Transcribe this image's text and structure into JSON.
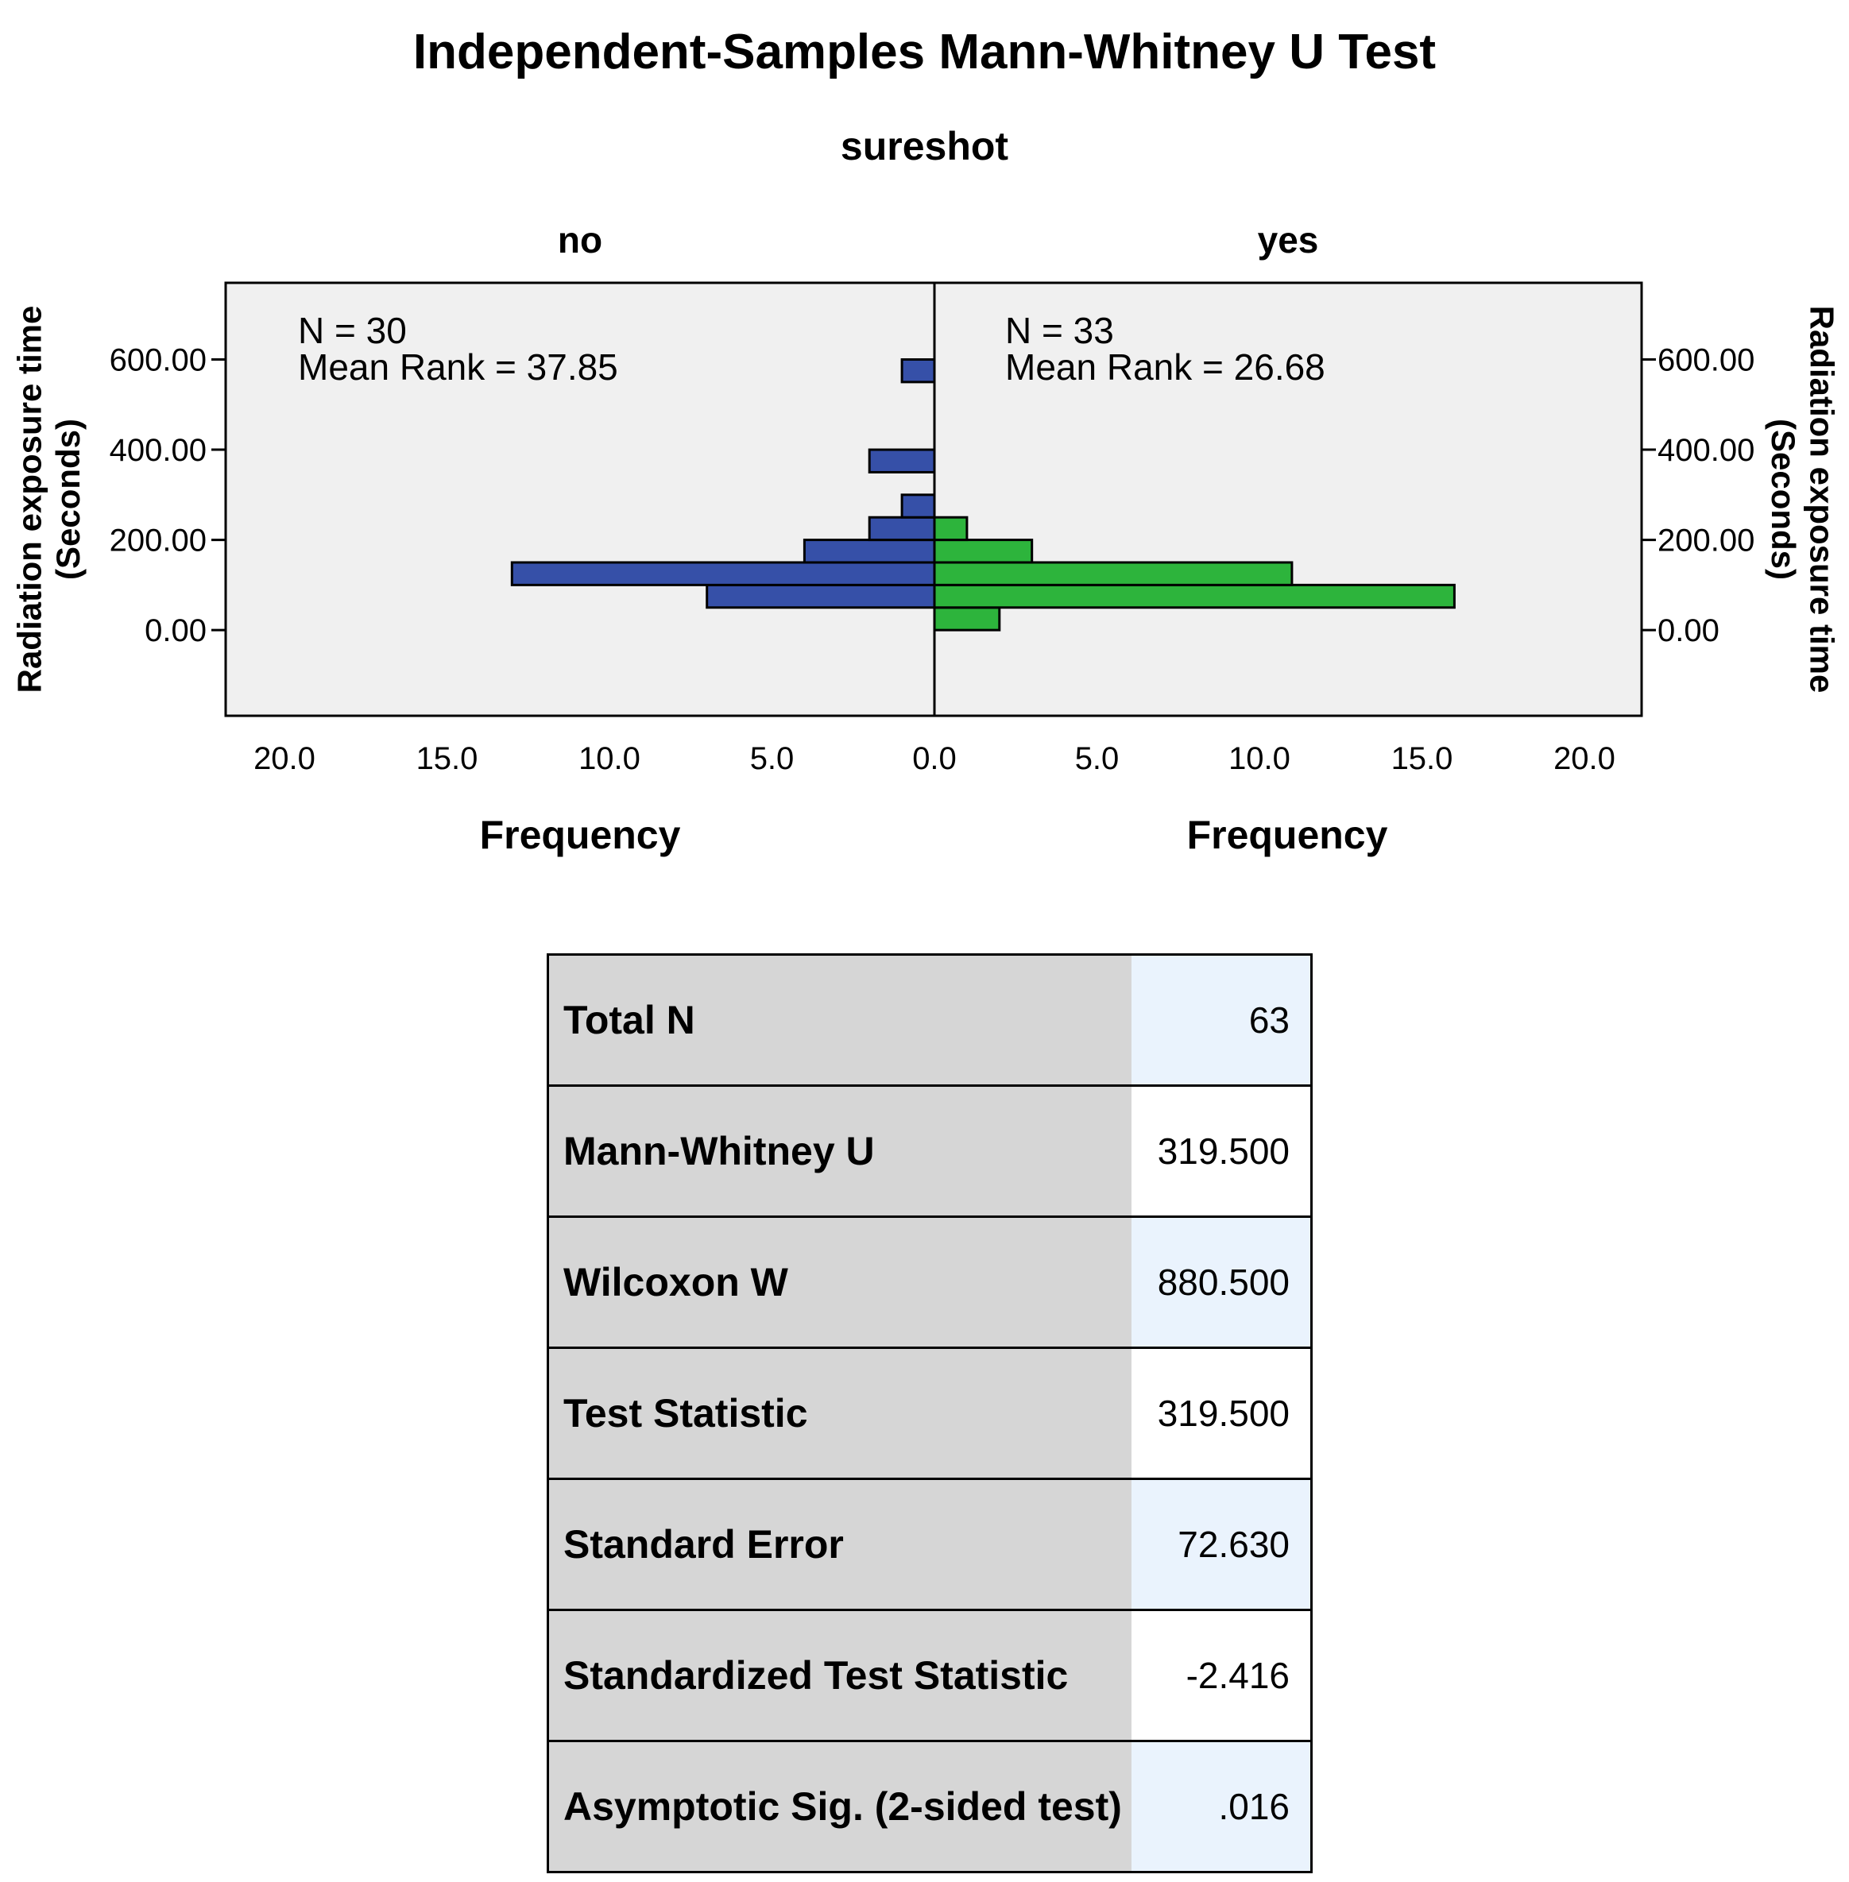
{
  "title": "Independent-Samples Mann-Whitney U Test",
  "subtitle": "sureshot",
  "colors": {
    "no": "#3650a8",
    "yes": "#2db43c",
    "plot_bg": "#f0f0f0"
  },
  "chart_data": {
    "type": "bar",
    "orientation": "horizontal-mirrored",
    "grouping_variable": "sureshot",
    "ylabel": "Radiation exposure time (Seconds)",
    "xlabel": "Frequency",
    "ylim": [
      -190,
      770
    ],
    "y_ticks": [
      0,
      200,
      400,
      600
    ],
    "y_tick_labels": [
      "0.00",
      "200.00",
      "400.00",
      "600.00"
    ],
    "xlim": [
      0,
      20
    ],
    "x_ticks": [
      0,
      5,
      10,
      15,
      20
    ],
    "x_tick_labels": [
      "0.0",
      "5.0",
      "10.0",
      "15.0",
      "20.0"
    ],
    "bin_width": 50,
    "groups": [
      {
        "name": "no",
        "n_label": "N = 30",
        "mean_rank_label": "Mean Rank = 37.85",
        "bins": [
          {
            "start": 50,
            "end": 100,
            "count": 7
          },
          {
            "start": 100,
            "end": 150,
            "count": 13
          },
          {
            "start": 150,
            "end": 200,
            "count": 4
          },
          {
            "start": 200,
            "end": 250,
            "count": 2
          },
          {
            "start": 250,
            "end": 300,
            "count": 1
          },
          {
            "start": 350,
            "end": 400,
            "count": 2
          },
          {
            "start": 550,
            "end": 600,
            "count": 1
          }
        ]
      },
      {
        "name": "yes",
        "n_label": "N = 33",
        "mean_rank_label": "Mean Rank = 26.68",
        "bins": [
          {
            "start": 0,
            "end": 50,
            "count": 2
          },
          {
            "start": 50,
            "end": 100,
            "count": 16
          },
          {
            "start": 100,
            "end": 150,
            "count": 11
          },
          {
            "start": 150,
            "end": 200,
            "count": 3
          },
          {
            "start": 200,
            "end": 250,
            "count": 1
          }
        ]
      }
    ]
  },
  "stats_table": [
    {
      "label": "Total N",
      "value": "63"
    },
    {
      "label": "Mann-Whitney U",
      "value": "319.500"
    },
    {
      "label": "Wilcoxon W",
      "value": "880.500"
    },
    {
      "label": "Test Statistic",
      "value": "319.500"
    },
    {
      "label": "Standard Error",
      "value": "72.630"
    },
    {
      "label": "Standardized Test Statistic",
      "value": "-2.416"
    },
    {
      "label": "Asymptotic Sig. (2-sided test)",
      "value": ".016"
    }
  ]
}
